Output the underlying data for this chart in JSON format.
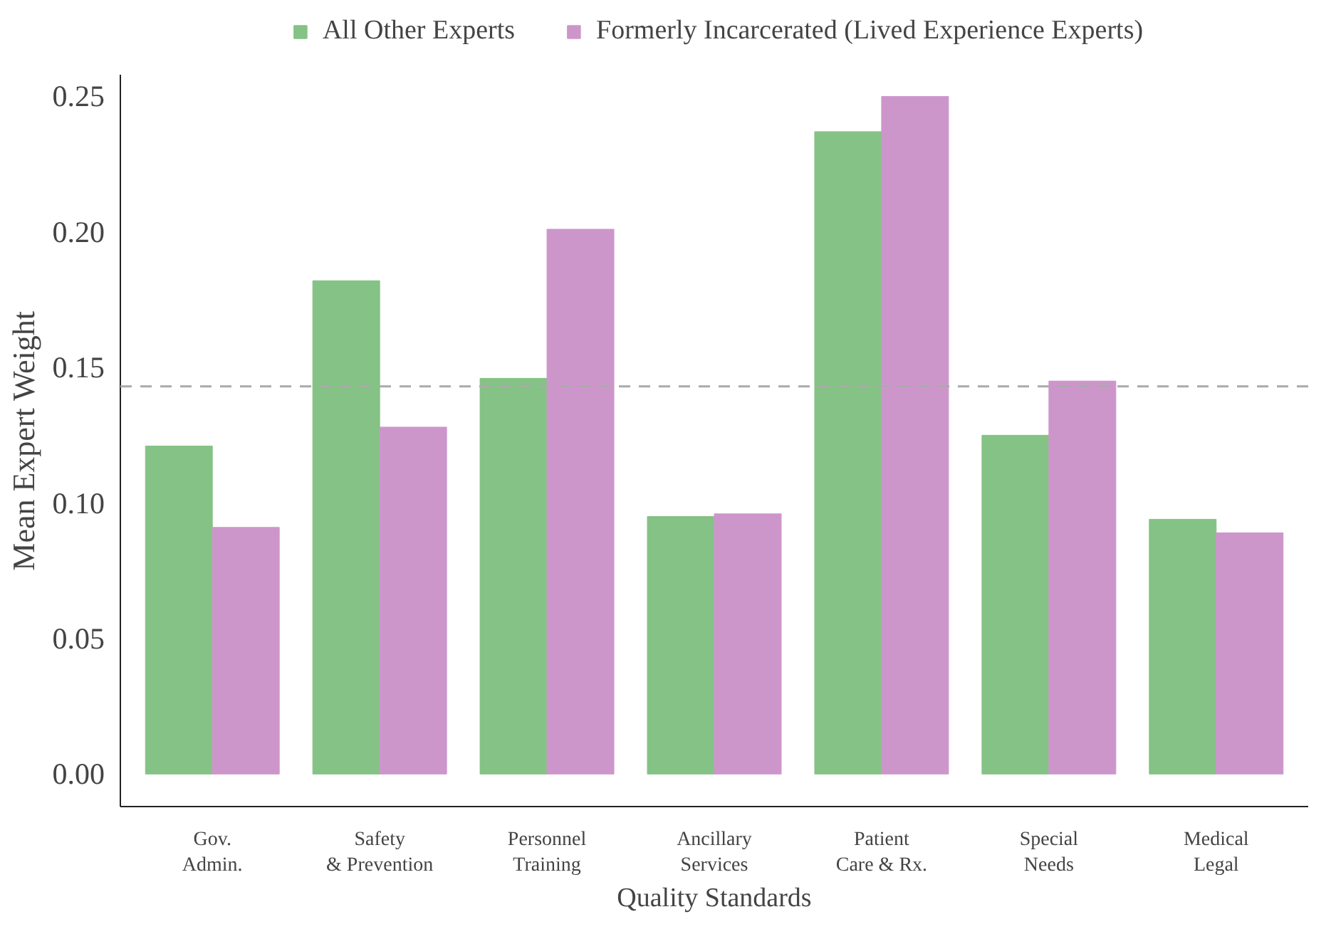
{
  "chart_data": {
    "type": "bar",
    "xlabel": "Quality Standards",
    "ylabel": "Mean Expert Weight",
    "categories": [
      "Gov.\nAdmin.",
      "Safety\n& Prevention",
      "Personnel\nTraining",
      "Ancillary\nServices",
      "Patient\nCare & Rx.",
      "Special\nNeeds",
      "Medical\nLegal"
    ],
    "series": [
      {
        "name": "All Other Experts",
        "color": "#85c285",
        "values": [
          0.121,
          0.182,
          0.146,
          0.095,
          0.237,
          0.125,
          0.094
        ]
      },
      {
        "name": "Formerly Incarcerated (Lived Experience Experts)",
        "color": "#cd96cb",
        "values": [
          0.091,
          0.128,
          0.201,
          0.096,
          0.25,
          0.145,
          0.089
        ]
      }
    ],
    "ylim": [
      -0.012,
      0.258
    ],
    "yticks": [
      {
        "value": 0,
        "label": "0.00"
      },
      {
        "value": 0.05,
        "label": "0.05"
      },
      {
        "value": 0.1,
        "label": "0.10"
      },
      {
        "value": 0.15,
        "label": "0.15"
      },
      {
        "value": 0.2,
        "label": "0.20"
      },
      {
        "value": 0.25,
        "label": "0.25"
      }
    ],
    "ref_lines": [
      {
        "axis": "y",
        "value": 0.143,
        "label": null,
        "color": "#aaaaaa",
        "line_style": "dashed"
      }
    ],
    "grid": false,
    "legend": "top"
  }
}
